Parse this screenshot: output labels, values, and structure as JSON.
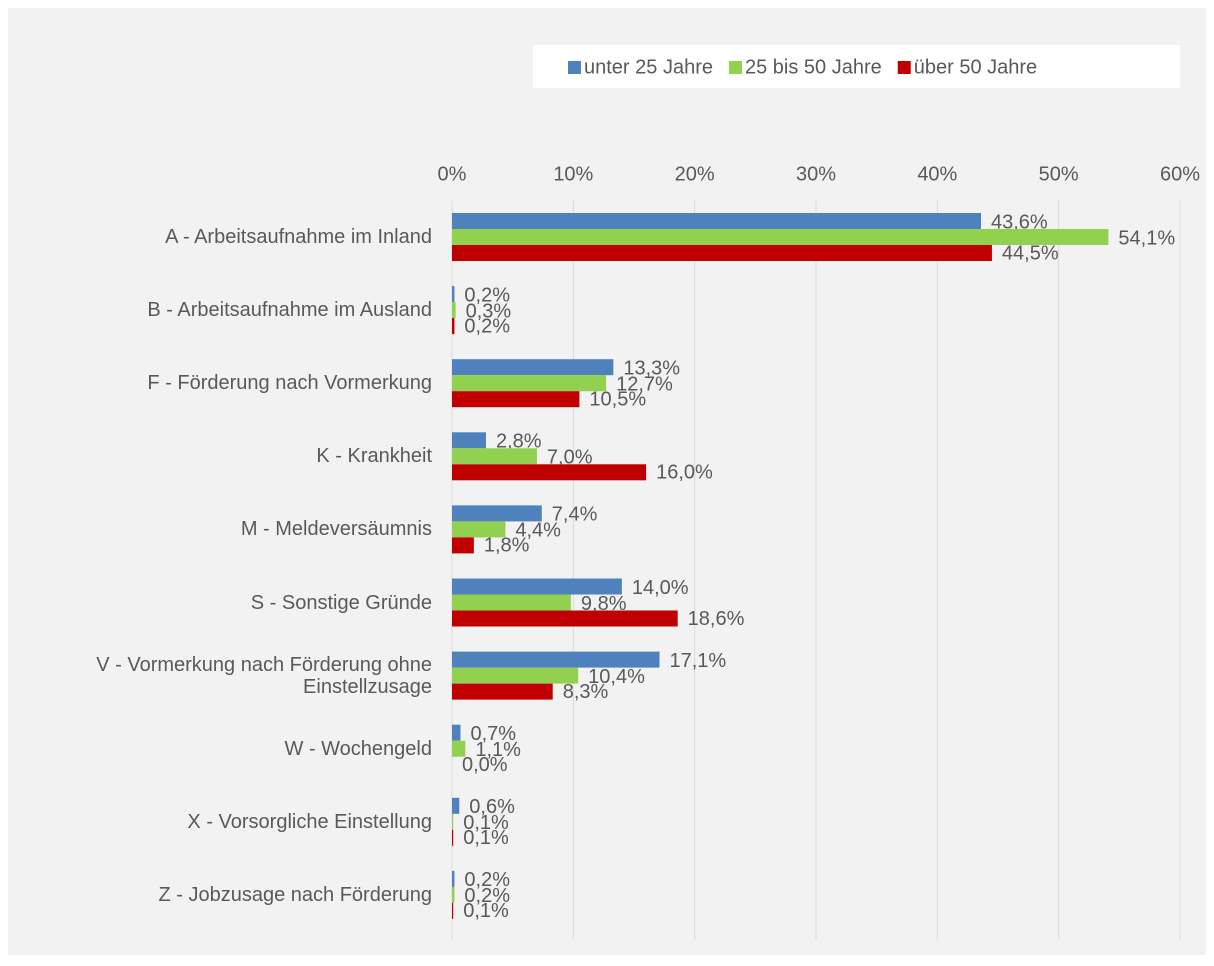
{
  "chart_data": {
    "type": "hbar",
    "categories": [
      "A - Arbeitsaufnahme im Inland",
      "B - Arbeitsaufnahme im Ausland",
      "F - Förderung nach Vormerkung",
      "K - Krankheit",
      "M - Meldeversäumnis",
      "S - Sonstige Gründe",
      "V - Vormerkung nach Förderung ohne Einstellzusage",
      "W - Wochengeld",
      "X - Vorsorgliche Einstellung",
      "Z - Jobzusage nach Förderung"
    ],
    "series": [
      {
        "name": "unter 25 Jahre",
        "color": "#4f81bd",
        "label_color": "#0070c0",
        "values": [
          43.6,
          0.2,
          13.3,
          2.8,
          7.4,
          14.0,
          17.1,
          0.7,
          0.6,
          0.2
        ],
        "value_labels": [
          "43,6%",
          "0,2%",
          "13,3%",
          "2,8%",
          "7,4%",
          "14,0%",
          "17,1%",
          "0,7%",
          "0,6%",
          "0,2%"
        ]
      },
      {
        "name": "25 bis 50 Jahre",
        "color": "#92d050",
        "label_color": "#92d050",
        "values": [
          54.1,
          0.3,
          12.7,
          7.0,
          4.4,
          9.8,
          10.4,
          1.1,
          0.1,
          0.2
        ],
        "value_labels": [
          "54,1%",
          "0,3%",
          "12,7%",
          "7,0%",
          "4,4%",
          "9,8%",
          "10,4%",
          "1,1%",
          "0,1%",
          "0,2%"
        ]
      },
      {
        "name": "über 50 Jahre",
        "color": "#c00000",
        "label_color": "#c00000",
        "values": [
          44.5,
          0.2,
          10.5,
          16.0,
          1.8,
          18.6,
          8.3,
          0.0,
          0.1,
          0.1
        ],
        "value_labels": [
          "44,5%",
          "0,2%",
          "10,5%",
          "16,0%",
          "1,8%",
          "18,6%",
          "8,3%",
          "0,0%",
          "0,1%",
          "0,1%"
        ]
      }
    ],
    "xlim": [
      0,
      60
    ],
    "xticks": [
      {
        "value": 0,
        "label": "0%"
      },
      {
        "value": 10,
        "label": "10%"
      },
      {
        "value": 20,
        "label": "20%"
      },
      {
        "value": 30,
        "label": "30%"
      },
      {
        "value": 40,
        "label": "40%"
      },
      {
        "value": 50,
        "label": "50%"
      },
      {
        "value": 60,
        "label": "60%"
      }
    ],
    "grid": true,
    "legend": "top-right"
  }
}
